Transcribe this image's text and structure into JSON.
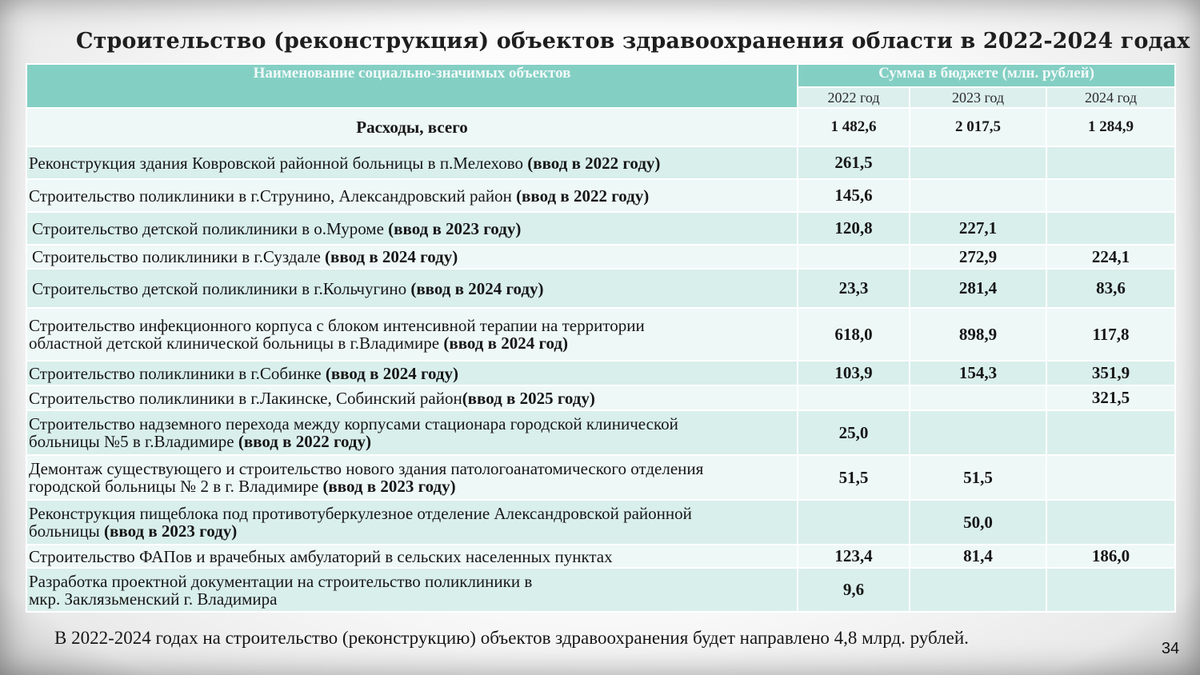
{
  "title": "Строительство (реконструкция) объектов здравоохранения области в 2022-2024 годах",
  "table": {
    "header_name": "Наименование социально-значимых объектов",
    "header_budget": "Сумма в бюджете (млн. рублей)",
    "years": [
      "2022 год",
      "2023 год",
      "2024 год"
    ],
    "total": {
      "label": "Расходы, всего",
      "values": [
        "1 482,6",
        "2 017,5",
        "1 284,9"
      ]
    },
    "rows": [
      {
        "name_lines": [
          {
            "text": "Реконструкция здания Ковровской районной больницы в п.Мелехово ",
            "bold": "(ввод в 2022 году)"
          }
        ],
        "values": [
          "261,5",
          "",
          ""
        ]
      },
      {
        "name_lines": [
          {
            "text": "Строительство поликлиники в г.Струнино, Александровский район ",
            "bold": "(ввод в 2022 году)"
          }
        ],
        "values": [
          "145,6",
          "",
          ""
        ]
      },
      {
        "name_lines": [
          {
            "text": "Строительство детской поликлиники в о.Муроме ",
            "bold": "(ввод в 2023 году)"
          }
        ],
        "values": [
          "120,8",
          "227,1",
          ""
        ]
      },
      {
        "name_lines": [
          {
            "text": "Строительство поликлиники в г.Суздале ",
            "bold": "(ввод в 2024 году)"
          }
        ],
        "values": [
          "",
          "272,9",
          "224,1"
        ]
      },
      {
        "name_lines": [
          {
            "text": "Строительство детской поликлиники в г.Кольчугино ",
            "bold": "(ввод в 2024 году)"
          }
        ],
        "values": [
          "23,3",
          "281,4",
          "83,6"
        ]
      },
      {
        "name_lines": [
          {
            "text": "Строительство инфекционного корпуса с блоком интенсивной терапии на территории",
            "bold": ""
          },
          {
            "text": "областной детской клинической больницы в г.Владимире ",
            "bold": "(ввод в 2024 год)"
          }
        ],
        "values": [
          "618,0",
          "898,9",
          "117,8"
        ]
      },
      {
        "name_lines": [
          {
            "text": "Строительство поликлиники в г.Собинке ",
            "bold": "(ввод в 2024 году)"
          }
        ],
        "values": [
          "103,9",
          "154,3",
          "351,9"
        ]
      },
      {
        "name_lines": [
          {
            "text": "Строительство поликлиники в г.Лакинске, Собинский район",
            "bold": "(ввод в 2025 году)"
          }
        ],
        "values": [
          "",
          "",
          "321,5"
        ]
      },
      {
        "name_lines": [
          {
            "text": "Строительство надземного перехода между корпусами стационара городской клинической",
            "bold": ""
          },
          {
            "text": "больницы №5 в г.Владимире ",
            "bold": "(ввод в 2022 году)"
          }
        ],
        "values": [
          "25,0",
          "",
          ""
        ]
      },
      {
        "name_lines": [
          {
            "text": "Демонтаж существующего и строительство нового здания патологоанатомического отделения",
            "bold": ""
          },
          {
            "text": "городской больницы № 2 в г. Владимире ",
            "bold": "(ввод в 2023 году)"
          }
        ],
        "values": [
          "51,5",
          "51,5",
          ""
        ]
      },
      {
        "name_lines": [
          {
            "text": "Реконструкция пищеблока под противотуберкулезное отделение  Александровской районной",
            "bold": ""
          },
          {
            "text": "больницы ",
            "bold": "(ввод в 2023 году)"
          }
        ],
        "values": [
          "",
          "50,0",
          ""
        ]
      },
      {
        "name_lines": [
          {
            "text": "Строительство ФАПов и врачебных амбулаторий в сельских населенных пунктах",
            "bold": ""
          }
        ],
        "values": [
          "123,4",
          "81,4",
          "186,0"
        ]
      },
      {
        "name_lines": [
          {
            "text": "Разработка проектной документации на строительство поликлиники  в",
            "bold": ""
          },
          {
            "text": "мкр. Заклязьменский г. Владимира",
            "bold": ""
          }
        ],
        "values": [
          "9,6",
          "",
          ""
        ]
      }
    ]
  },
  "footnote": "В 2022-2024 годах на строительство (реконструкцию) объектов здравоохранения будет направлено  4,8 млрд. рублей.",
  "page_number": "34"
}
